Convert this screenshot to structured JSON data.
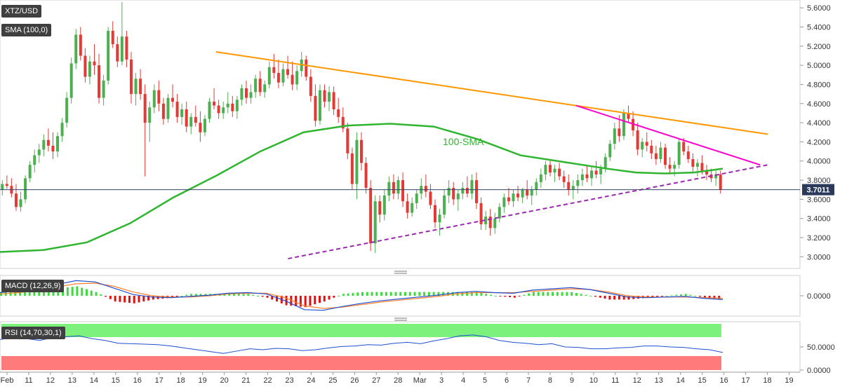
{
  "panel_labels": {
    "symbol": "XTZ/USD",
    "sma": "SMA (100,0)",
    "macd": "MACD (12,26,9)",
    "rsi": "RSI (14,70,30,1)"
  },
  "annotations": {
    "sma_label": "100-SMA"
  },
  "colors": {
    "bull": "#4caf50",
    "bear": "#e53935",
    "sma": "#2fb52f",
    "resistance_long": "#ff9800",
    "resistance_short": "#ff00cc",
    "support": "#9c27b0",
    "macd": "#1f4fd1",
    "signal": "#ff7f2a",
    "rsi_overbought": "#7cf27c",
    "rsi_oversold": "#ff7b7b",
    "rsi_line": "#1f4fd1"
  },
  "chart_data": [
    {
      "type": "candlestick",
      "title": "XTZ/USD",
      "ylim": [
        2.9,
        5.66
      ],
      "y_ticks": [
        "5.6000",
        "5.4000",
        "5.2000",
        "5.0000",
        "4.8000",
        "4.6000",
        "4.4000",
        "4.2000",
        "4.0000",
        "3.8000",
        "3.6000",
        "3.4000",
        "3.2000",
        "3.0000"
      ],
      "x_ticks": [
        "Feb",
        "11",
        "12",
        "13",
        "14",
        "15",
        "16",
        "17",
        "18",
        "19",
        "20",
        "21",
        "22",
        "23",
        "24",
        "25",
        "26",
        "27",
        "28",
        "Mar",
        "3",
        "4",
        "5",
        "6",
        "7",
        "8",
        "9",
        "10",
        "11",
        "12",
        "13",
        "14",
        "15",
        "16",
        "17",
        "18",
        "19"
      ],
      "last_price": "3.7011",
      "last_price_value": 3.7011,
      "candles_ohlc": [
        [
          3.7,
          3.8,
          3.64,
          3.76
        ],
        [
          3.76,
          3.85,
          3.71,
          3.74
        ],
        [
          3.74,
          3.82,
          3.62,
          3.66
        ],
        [
          3.66,
          3.76,
          3.48,
          3.52
        ],
        [
          3.52,
          3.68,
          3.47,
          3.6
        ],
        [
          3.6,
          3.85,
          3.56,
          3.82
        ],
        [
          3.82,
          4.0,
          3.78,
          3.96
        ],
        [
          3.96,
          4.12,
          3.88,
          4.06
        ],
        [
          4.06,
          4.18,
          3.98,
          4.12
        ],
        [
          4.12,
          4.28,
          4.05,
          4.22
        ],
        [
          4.22,
          4.34,
          4.1,
          4.16
        ],
        [
          4.16,
          4.3,
          4.02,
          4.1
        ],
        [
          4.1,
          4.3,
          4.04,
          4.26
        ],
        [
          4.26,
          4.45,
          4.2,
          4.4
        ],
        [
          4.4,
          4.72,
          4.35,
          4.66
        ],
        [
          4.66,
          5.08,
          4.6,
          5.02
        ],
        [
          5.02,
          5.38,
          4.96,
          5.32
        ],
        [
          5.32,
          5.4,
          5.05,
          5.1
        ],
        [
          5.1,
          5.18,
          4.82,
          4.88
        ],
        [
          4.88,
          5.1,
          4.8,
          5.04
        ],
        [
          5.04,
          5.22,
          4.9,
          5.0
        ],
        [
          5.0,
          5.12,
          4.6,
          4.66
        ],
        [
          4.66,
          4.9,
          4.58,
          4.84
        ],
        [
          4.84,
          5.4,
          4.8,
          5.36
        ],
        [
          5.36,
          5.46,
          5.18,
          5.22
        ],
        [
          5.22,
          5.3,
          4.98,
          5.04
        ],
        [
          5.04,
          5.66,
          5.0,
          5.3
        ],
        [
          5.3,
          5.36,
          4.98,
          5.06
        ],
        [
          5.06,
          5.14,
          4.6,
          4.7
        ],
        [
          4.7,
          4.92,
          4.58,
          4.86
        ],
        [
          4.86,
          4.96,
          4.64,
          4.7
        ],
        [
          4.7,
          4.8,
          3.84,
          4.4
        ],
        [
          4.4,
          4.62,
          4.2,
          4.56
        ],
        [
          4.56,
          4.8,
          4.5,
          4.74
        ],
        [
          4.74,
          4.84,
          4.52,
          4.6
        ],
        [
          4.6,
          4.66,
          4.38,
          4.44
        ],
        [
          4.44,
          4.7,
          4.4,
          4.66
        ],
        [
          4.66,
          4.8,
          4.56,
          4.62
        ],
        [
          4.62,
          4.7,
          4.4,
          4.46
        ],
        [
          4.46,
          4.6,
          4.38,
          4.54
        ],
        [
          4.54,
          4.62,
          4.3,
          4.36
        ],
        [
          4.36,
          4.5,
          4.28,
          4.46
        ],
        [
          4.46,
          4.58,
          4.36,
          4.4
        ],
        [
          4.4,
          4.52,
          4.2,
          4.3
        ],
        [
          4.3,
          4.48,
          4.26,
          4.44
        ],
        [
          4.44,
          4.66,
          4.4,
          4.62
        ],
        [
          4.62,
          4.76,
          4.54,
          4.58
        ],
        [
          4.58,
          4.64,
          4.44,
          4.5
        ],
        [
          4.5,
          4.62,
          4.44,
          4.56
        ],
        [
          4.56,
          4.72,
          4.5,
          4.6
        ],
        [
          4.6,
          4.68,
          4.46,
          4.52
        ],
        [
          4.52,
          4.68,
          4.44,
          4.64
        ],
        [
          4.64,
          4.8,
          4.58,
          4.76
        ],
        [
          4.76,
          4.84,
          4.6,
          4.66
        ],
        [
          4.66,
          4.8,
          4.6,
          4.72
        ],
        [
          4.72,
          4.9,
          4.66,
          4.86
        ],
        [
          4.86,
          4.94,
          4.68,
          4.72
        ],
        [
          4.72,
          4.84,
          4.66,
          4.8
        ],
        [
          4.8,
          5.04,
          4.76,
          4.98
        ],
        [
          4.98,
          5.12,
          4.86,
          4.92
        ],
        [
          4.92,
          5.06,
          4.76,
          4.82
        ],
        [
          4.82,
          5.02,
          4.78,
          4.96
        ],
        [
          4.96,
          5.1,
          4.86,
          4.9
        ],
        [
          4.9,
          5.04,
          4.74,
          4.8
        ],
        [
          4.8,
          5.0,
          4.74,
          4.94
        ],
        [
          4.94,
          5.14,
          4.88,
          5.06
        ],
        [
          5.06,
          5.1,
          4.84,
          4.88
        ],
        [
          4.88,
          4.96,
          4.62,
          4.68
        ],
        [
          4.68,
          4.8,
          4.36,
          4.42
        ],
        [
          4.42,
          4.8,
          4.38,
          4.74
        ],
        [
          4.74,
          4.8,
          4.56,
          4.62
        ],
        [
          4.62,
          4.78,
          4.52,
          4.72
        ],
        [
          4.72,
          4.78,
          4.48,
          4.54
        ],
        [
          4.54,
          4.66,
          4.4,
          4.46
        ],
        [
          4.46,
          4.56,
          4.3,
          4.34
        ],
        [
          4.34,
          4.4,
          4.02,
          4.08
        ],
        [
          4.08,
          4.14,
          3.7,
          3.76
        ],
        [
          3.76,
          4.3,
          3.6,
          4.22
        ],
        [
          4.22,
          4.3,
          3.9,
          3.98
        ],
        [
          3.98,
          4.04,
          3.66,
          3.72
        ],
        [
          3.72,
          3.8,
          3.06,
          3.14
        ],
        [
          3.14,
          3.64,
          3.04,
          3.58
        ],
        [
          3.58,
          3.64,
          3.36,
          3.44
        ],
        [
          3.44,
          3.7,
          3.38,
          3.64
        ],
        [
          3.64,
          3.84,
          3.58,
          3.78
        ],
        [
          3.78,
          3.86,
          3.6,
          3.66
        ],
        [
          3.66,
          3.84,
          3.6,
          3.8
        ],
        [
          3.8,
          3.88,
          3.52,
          3.58
        ],
        [
          3.58,
          3.66,
          3.4,
          3.46
        ],
        [
          3.46,
          3.62,
          3.42,
          3.56
        ],
        [
          3.56,
          3.7,
          3.5,
          3.66
        ],
        [
          3.66,
          3.82,
          3.6,
          3.74
        ],
        [
          3.74,
          3.86,
          3.62,
          3.68
        ],
        [
          3.68,
          3.76,
          3.5,
          3.54
        ],
        [
          3.54,
          3.6,
          3.3,
          3.36
        ],
        [
          3.36,
          3.5,
          3.22,
          3.44
        ],
        [
          3.44,
          3.7,
          3.4,
          3.64
        ],
        [
          3.64,
          3.8,
          3.56,
          3.72
        ],
        [
          3.72,
          3.78,
          3.54,
          3.6
        ],
        [
          3.6,
          3.7,
          3.48,
          3.66
        ],
        [
          3.66,
          3.78,
          3.6,
          3.72
        ],
        [
          3.72,
          3.84,
          3.62,
          3.66
        ],
        [
          3.66,
          3.86,
          3.6,
          3.8
        ],
        [
          3.8,
          3.88,
          3.5,
          3.56
        ],
        [
          3.56,
          3.62,
          3.28,
          3.34
        ],
        [
          3.34,
          3.48,
          3.28,
          3.42
        ],
        [
          3.42,
          3.5,
          3.22,
          3.3
        ],
        [
          3.3,
          3.46,
          3.24,
          3.4
        ],
        [
          3.4,
          3.56,
          3.36,
          3.52
        ],
        [
          3.52,
          3.66,
          3.46,
          3.62
        ],
        [
          3.62,
          3.72,
          3.54,
          3.58
        ],
        [
          3.58,
          3.7,
          3.52,
          3.66
        ],
        [
          3.66,
          3.74,
          3.58,
          3.62
        ],
        [
          3.62,
          3.72,
          3.56,
          3.7
        ],
        [
          3.7,
          3.8,
          3.6,
          3.64
        ],
        [
          3.64,
          3.74,
          3.54,
          3.7
        ],
        [
          3.7,
          3.82,
          3.64,
          3.78
        ],
        [
          3.78,
          3.92,
          3.72,
          3.86
        ],
        [
          3.86,
          4.0,
          3.8,
          3.96
        ],
        [
          3.96,
          4.02,
          3.84,
          3.88
        ],
        [
          3.88,
          3.96,
          3.78,
          3.92
        ],
        [
          3.92,
          3.98,
          3.8,
          3.84
        ],
        [
          3.84,
          3.9,
          3.72,
          3.78
        ],
        [
          3.78,
          3.86,
          3.64,
          3.7
        ],
        [
          3.7,
          3.8,
          3.6,
          3.74
        ],
        [
          3.74,
          3.86,
          3.66,
          3.8
        ],
        [
          3.8,
          3.92,
          3.74,
          3.86
        ],
        [
          3.86,
          3.96,
          3.78,
          3.82
        ],
        [
          3.82,
          3.94,
          3.74,
          3.9
        ],
        [
          3.9,
          4.0,
          3.82,
          3.86
        ],
        [
          3.86,
          3.96,
          3.76,
          3.92
        ],
        [
          3.92,
          4.08,
          3.88,
          4.04
        ],
        [
          4.04,
          4.22,
          4.0,
          4.18
        ],
        [
          4.18,
          4.4,
          4.12,
          4.34
        ],
        [
          4.34,
          4.48,
          4.2,
          4.26
        ],
        [
          4.26,
          4.54,
          4.22,
          4.5
        ],
        [
          4.5,
          4.58,
          4.4,
          4.44
        ],
        [
          4.44,
          4.52,
          4.26,
          4.32
        ],
        [
          4.32,
          4.4,
          4.06,
          4.12
        ],
        [
          4.12,
          4.24,
          4.04,
          4.2
        ],
        [
          4.2,
          4.3,
          4.1,
          4.16
        ],
        [
          4.16,
          4.22,
          4.02,
          4.08
        ],
        [
          4.08,
          4.16,
          3.96,
          4.02
        ],
        [
          4.02,
          4.2,
          3.98,
          4.14
        ],
        [
          4.14,
          4.18,
          3.92,
          3.96
        ],
        [
          3.96,
          4.04,
          3.86,
          3.92
        ],
        [
          3.92,
          4.0,
          3.84,
          3.96
        ],
        [
          3.96,
          4.24,
          3.92,
          4.2
        ],
        [
          4.2,
          4.24,
          4.06,
          4.1
        ],
        [
          4.1,
          4.16,
          3.98,
          4.02
        ],
        [
          4.02,
          4.08,
          3.88,
          3.94
        ],
        [
          3.94,
          4.02,
          3.84,
          3.98
        ],
        [
          3.98,
          4.06,
          3.86,
          3.9
        ],
        [
          3.9,
          3.96,
          3.8,
          3.86
        ],
        [
          3.86,
          3.92,
          3.78,
          3.82
        ],
        [
          3.82,
          3.9,
          3.74,
          3.86
        ],
        [
          3.86,
          3.9,
          3.66,
          3.7
        ]
      ],
      "sma_100": [
        [
          0,
          3.05
        ],
        [
          0.06,
          3.07
        ],
        [
          0.12,
          3.15
        ],
        [
          0.18,
          3.35
        ],
        [
          0.24,
          3.62
        ],
        [
          0.3,
          3.85
        ],
        [
          0.36,
          4.1
        ],
        [
          0.42,
          4.3
        ],
        [
          0.48,
          4.37
        ],
        [
          0.54,
          4.39
        ],
        [
          0.6,
          4.36
        ],
        [
          0.66,
          4.23
        ],
        [
          0.72,
          4.06
        ],
        [
          0.78,
          3.99
        ],
        [
          0.84,
          3.92
        ],
        [
          0.88,
          3.88
        ],
        [
          0.92,
          3.87
        ],
        [
          0.96,
          3.88
        ],
        [
          1,
          3.92
        ]
      ],
      "trendlines": [
        {
          "name": "resistance_long",
          "from": [
            0.27,
            5.14
          ],
          "to": [
            0.96,
            4.28
          ]
        },
        {
          "name": "resistance_short",
          "from": [
            0.72,
            4.58
          ],
          "to": [
            0.95,
            3.96
          ]
        },
        {
          "name": "support",
          "from": [
            0.36,
            2.98
          ],
          "to": [
            0.96,
            3.96
          ],
          "style": "dashed"
        }
      ]
    },
    {
      "type": "macd",
      "title": "MACD (12,26,9)",
      "y_ticks": [
        "0.0000"
      ],
      "macd_line": [
        0.05,
        0.08,
        0.12,
        0.18,
        0.24,
        0.22,
        0.12,
        0.02,
        -0.02,
        -0.03,
        -0.01,
        0.01,
        0.04,
        0.05,
        0.03,
        -0.08,
        -0.22,
        -0.23,
        -0.17,
        -0.12,
        -0.08,
        -0.05,
        -0.02,
        0.01,
        0.05,
        0.07,
        0.05,
        0.04,
        0.09,
        0.11,
        0.13,
        0.1,
        0.04,
        -0.02,
        -0.03,
        -0.02,
        -0.01,
        -0.04,
        -0.06
      ],
      "signal_line": [
        0.03,
        0.05,
        0.09,
        0.14,
        0.19,
        0.2,
        0.15,
        0.06,
        0.0,
        -0.02,
        -0.02,
        0.0,
        0.03,
        0.04,
        0.04,
        -0.03,
        -0.16,
        -0.2,
        -0.18,
        -0.14,
        -0.1,
        -0.07,
        -0.04,
        -0.01,
        0.03,
        0.05,
        0.05,
        0.05,
        0.07,
        0.09,
        0.11,
        0.1,
        0.06,
        0.0,
        -0.02,
        -0.02,
        -0.02,
        -0.03,
        -0.04
      ],
      "ylim": [
        -0.3,
        0.3
      ]
    },
    {
      "type": "rsi",
      "title": "RSI (14,70,30,1)",
      "y_ticks": [
        "50.0000",
        "0.0000"
      ],
      "ylim": [
        0,
        100
      ],
      "overbought": 70,
      "oversold": 30,
      "values": [
        66,
        70,
        68,
        64,
        70,
        72,
        74,
        68,
        64,
        58,
        57,
        56,
        55,
        52,
        48,
        44,
        40,
        36,
        41,
        46,
        44,
        47,
        46,
        42,
        44,
        48,
        51,
        52,
        55,
        54,
        58,
        60,
        57,
        63,
        68,
        74,
        76,
        72,
        64,
        60,
        58,
        55,
        57,
        50,
        49,
        46,
        46,
        48,
        49,
        52,
        52,
        50,
        49,
        46,
        44,
        38
      ]
    }
  ]
}
